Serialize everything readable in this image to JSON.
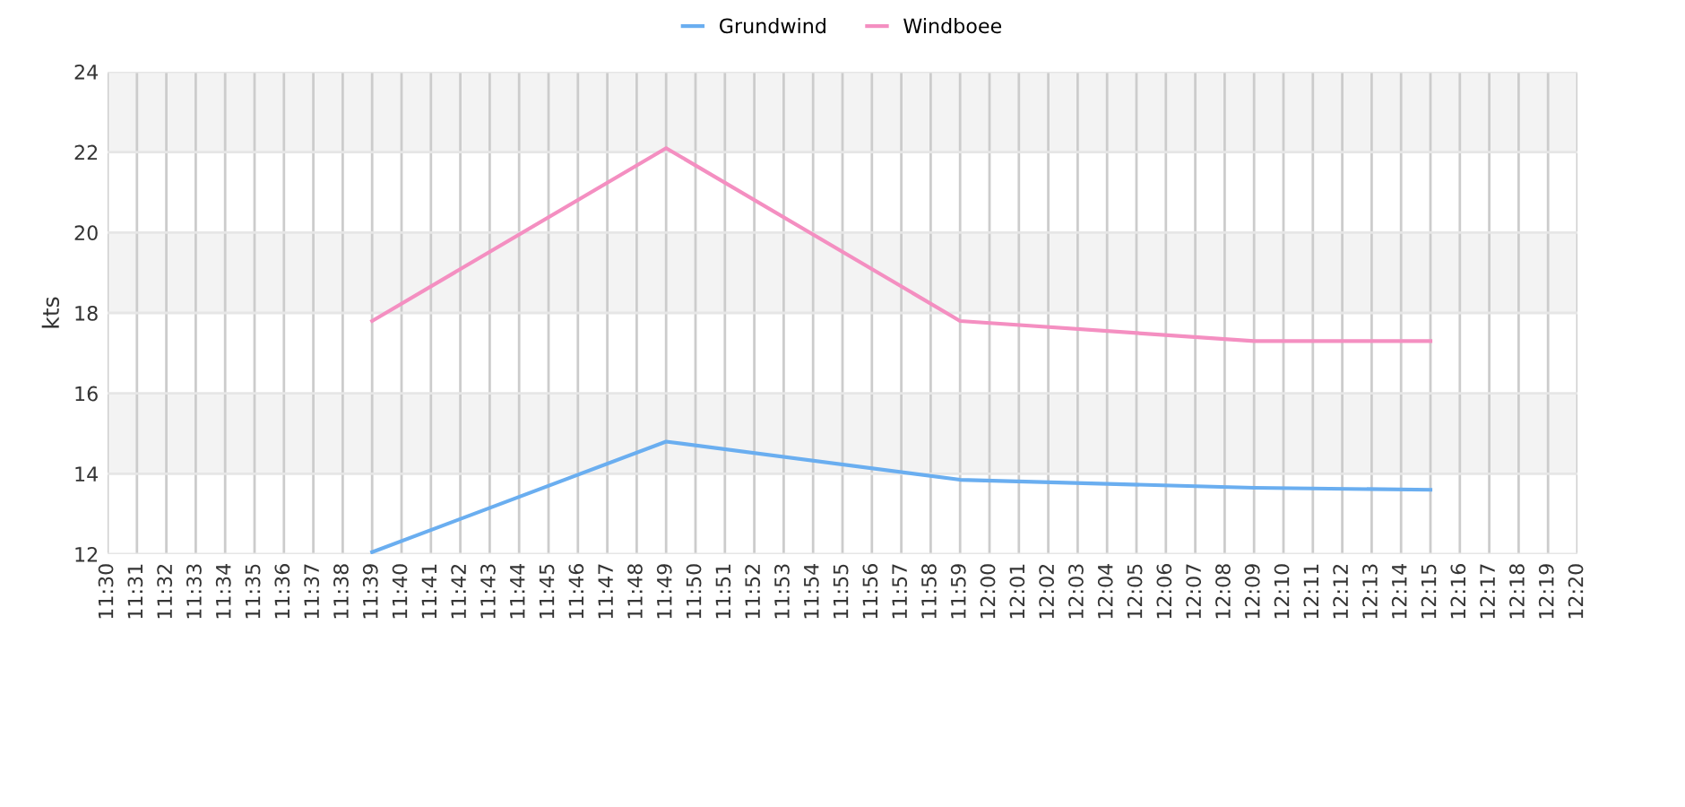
{
  "chart_data": {
    "type": "line",
    "ylabel": "kts",
    "categories": [
      "11:30",
      "11:31",
      "11:32",
      "11:33",
      "11:34",
      "11:35",
      "11:36",
      "11:37",
      "11:38",
      "11:39",
      "11:40",
      "11:41",
      "11:42",
      "11:43",
      "11:44",
      "11:45",
      "11:46",
      "11:47",
      "11:48",
      "11:49",
      "11:50",
      "11:51",
      "11:52",
      "11:53",
      "11:54",
      "11:55",
      "11:56",
      "11:57",
      "11:58",
      "11:59",
      "12:00",
      "12:01",
      "12:02",
      "12:03",
      "12:04",
      "12:05",
      "12:06",
      "12:07",
      "12:08",
      "12:09",
      "12:10",
      "12:11",
      "12:12",
      "12:13",
      "12:14",
      "12:15",
      "12:16",
      "12:17",
      "12:18",
      "12:19",
      "12:20"
    ],
    "series": [
      {
        "name": "Grundwind",
        "color": "#6aaef0",
        "values": [
          null,
          null,
          null,
          null,
          null,
          null,
          null,
          null,
          null,
          12.05,
          null,
          null,
          null,
          null,
          null,
          null,
          null,
          null,
          null,
          14.8,
          null,
          null,
          null,
          null,
          null,
          null,
          null,
          null,
          null,
          13.85,
          null,
          null,
          null,
          null,
          null,
          null,
          null,
          null,
          null,
          13.65,
          null,
          null,
          null,
          null,
          null,
          13.6,
          null,
          null,
          null,
          null,
          null
        ]
      },
      {
        "name": "Windboee",
        "color": "#f48fc1",
        "values": [
          null,
          null,
          null,
          null,
          null,
          null,
          null,
          null,
          null,
          17.8,
          null,
          null,
          null,
          null,
          null,
          null,
          null,
          null,
          null,
          22.1,
          null,
          null,
          null,
          null,
          null,
          null,
          null,
          null,
          null,
          17.8,
          null,
          null,
          null,
          null,
          null,
          null,
          null,
          null,
          null,
          17.3,
          null,
          null,
          null,
          null,
          null,
          17.3,
          null,
          null,
          null,
          null,
          null
        ]
      }
    ],
    "ylim": [
      12,
      24
    ],
    "yticks": [
      12,
      14,
      16,
      18,
      20,
      22,
      24
    ],
    "bands": [
      {
        "axis": "y",
        "from": 14,
        "to": 16,
        "color": "#f3f3f3"
      },
      {
        "axis": "y",
        "from": 18,
        "to": 20,
        "color": "#f3f3f3"
      },
      {
        "axis": "y",
        "from": 22,
        "to": 24,
        "color": "#f3f3f3"
      }
    ],
    "grid": true,
    "legend": "top",
    "marker": "none",
    "line_style": "solid"
  }
}
